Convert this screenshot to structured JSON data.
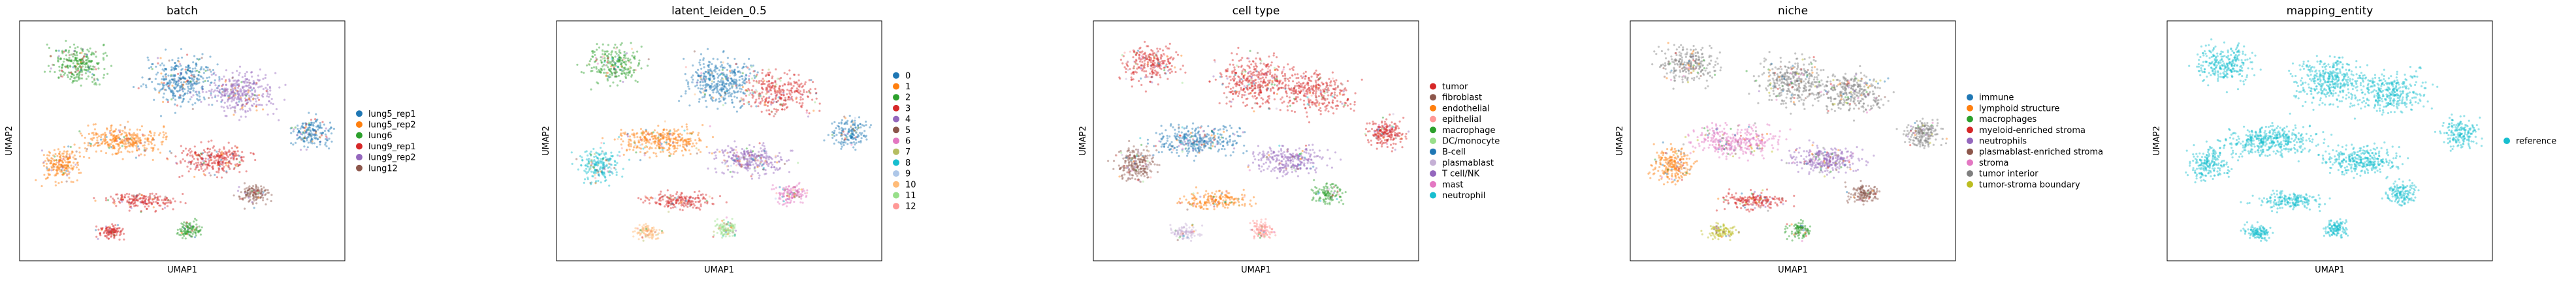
{
  "chart_data": [
    {
      "type": "scatter",
      "title": "batch",
      "xlabel": "UMAP1",
      "ylabel": "UMAP2",
      "grid": false,
      "legend_position": "right",
      "legend": [
        {
          "label": "lung5_rep1",
          "color": "#1f77b4"
        },
        {
          "label": "lung5_rep2",
          "color": "#ff7f0e"
        },
        {
          "label": "lung6",
          "color": "#2ca02c"
        },
        {
          "label": "lung9_rep1",
          "color": "#d62728"
        },
        {
          "label": "lung9_rep2",
          "color": "#9467bd"
        },
        {
          "label": "lung12",
          "color": "#8c564b"
        }
      ]
    },
    {
      "type": "scatter",
      "title": "latent_leiden_0.5",
      "xlabel": "UMAP1",
      "ylabel": "UMAP2",
      "grid": false,
      "legend_position": "right",
      "legend": [
        {
          "label": "0",
          "color": "#1f77b4"
        },
        {
          "label": "1",
          "color": "#ff7f0e"
        },
        {
          "label": "2",
          "color": "#2ca02c"
        },
        {
          "label": "3",
          "color": "#d62728"
        },
        {
          "label": "4",
          "color": "#9467bd"
        },
        {
          "label": "5",
          "color": "#8c564b"
        },
        {
          "label": "6",
          "color": "#e377c2"
        },
        {
          "label": "7",
          "color": "#b5bd61"
        },
        {
          "label": "8",
          "color": "#17becf"
        },
        {
          "label": "9",
          "color": "#aec7e8"
        },
        {
          "label": "10",
          "color": "#ffbb78"
        },
        {
          "label": "11",
          "color": "#98df8a"
        },
        {
          "label": "12",
          "color": "#ff9896"
        }
      ]
    },
    {
      "type": "scatter",
      "title": "cell type",
      "xlabel": "UMAP1",
      "ylabel": "UMAP2",
      "grid": false,
      "legend_position": "right",
      "legend": [
        {
          "label": "tumor",
          "color": "#d62728"
        },
        {
          "label": "fibroblast",
          "color": "#8c564b"
        },
        {
          "label": "endothelial",
          "color": "#ff7f0e"
        },
        {
          "label": "epithelial",
          "color": "#ff9896"
        },
        {
          "label": "macrophage",
          "color": "#2ca02c"
        },
        {
          "label": "DC/monocyte",
          "color": "#98df8a"
        },
        {
          "label": "B-cell",
          "color": "#1f77b4"
        },
        {
          "label": "plasmablast",
          "color": "#c5b0d5"
        },
        {
          "label": "T cell/NK",
          "color": "#9467bd"
        },
        {
          "label": "mast",
          "color": "#e377c2"
        },
        {
          "label": "neutrophil",
          "color": "#17becf"
        }
      ]
    },
    {
      "type": "scatter",
      "title": "niche",
      "xlabel": "UMAP1",
      "ylabel": "UMAP2",
      "grid": false,
      "legend_position": "right",
      "legend": [
        {
          "label": "immune",
          "color": "#1f77b4"
        },
        {
          "label": "lymphoid structure",
          "color": "#ff7f0e"
        },
        {
          "label": "macrophages",
          "color": "#2ca02c"
        },
        {
          "label": "myeloid-enriched stroma",
          "color": "#d62728"
        },
        {
          "label": "neutrophils",
          "color": "#9467bd"
        },
        {
          "label": "plasmablast-enriched stroma",
          "color": "#8c564b"
        },
        {
          "label": "stroma",
          "color": "#e377c2"
        },
        {
          "label": "tumor interior",
          "color": "#7f7f7f"
        },
        {
          "label": "tumor-stroma boundary",
          "color": "#bcbd22"
        }
      ]
    },
    {
      "type": "scatter",
      "title": "mapping_entity",
      "xlabel": "UMAP1",
      "ylabel": "UMAP2",
      "grid": false,
      "legend_position": "right",
      "legend": [
        {
          "label": "reference",
          "color": "#17becf"
        }
      ]
    }
  ]
}
